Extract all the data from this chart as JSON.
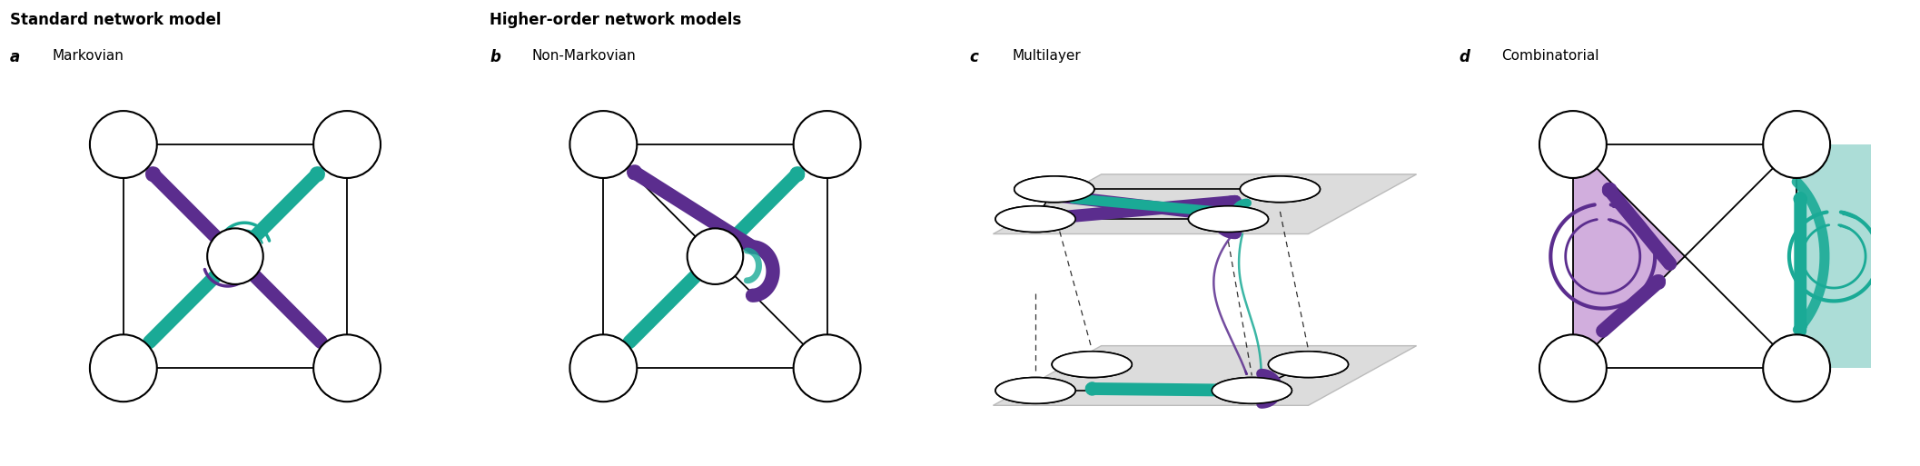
{
  "figure_width": 21.14,
  "figure_height": 5.13,
  "dpi": 100,
  "background_color": "#ffffff",
  "panel_bg": "#e5e5e5",
  "layer_bg": "#dcdcdc",
  "teal": "#1aaa96",
  "purple": "#5b2d8e",
  "teal_light": "#80d4ca",
  "purple_light": "#c9a8e0",
  "teal_region": "#9ed8d0",
  "purple_region": "#c9a0d8",
  "title_standard": "Standard network model",
  "title_higher": "Higher-order network models",
  "panels": [
    {
      "label": "a",
      "subtitle": "Markovian"
    },
    {
      "label": "b",
      "subtitle": "Non-Markovian"
    },
    {
      "label": "c",
      "subtitle": "Multilayer"
    },
    {
      "label": "d",
      "subtitle": "Combinatorial"
    }
  ]
}
